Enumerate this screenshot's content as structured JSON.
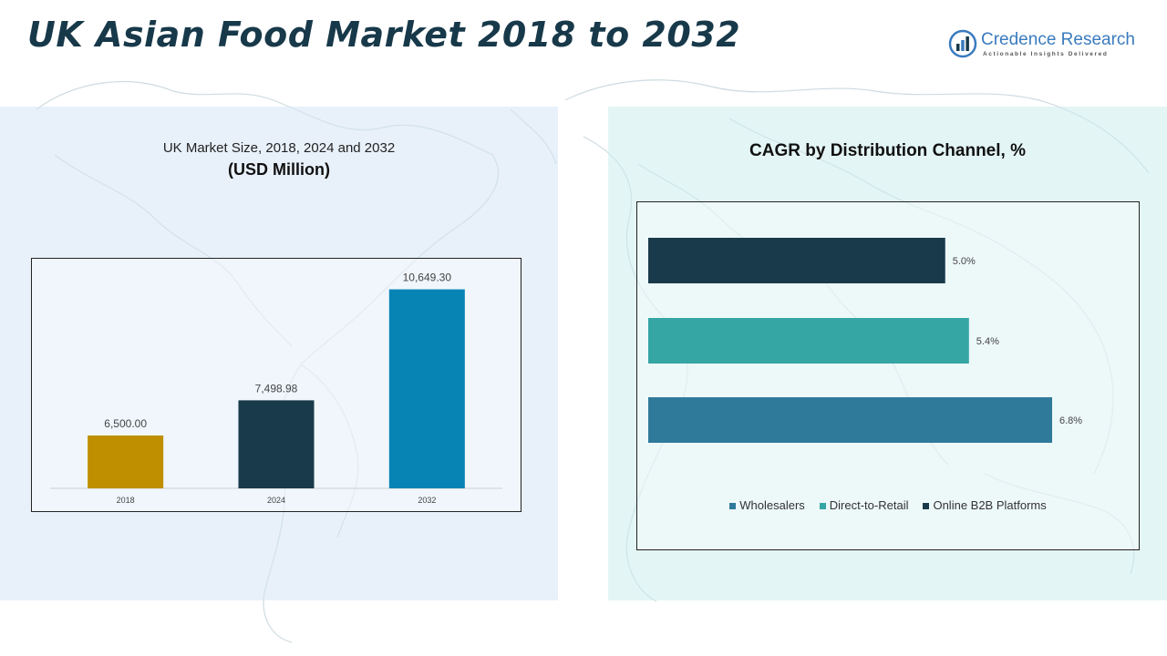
{
  "title": "UK Asian Food Market 2018 to 2032",
  "logo": {
    "name": "Credence Research",
    "tagline": "Actionable Insights Delivered",
    "icon": "credence-chart-icon"
  },
  "colors": {
    "title": "#17394a",
    "bar_2018": "#bf8f00",
    "bar_2024": "#193a4a",
    "bar_2032": "#0784b4",
    "online_b2b": "#193a4a",
    "direct_to_retail": "#35a6a4",
    "wholesalers": "#2f7a9a"
  },
  "chart_data": [
    {
      "type": "bar",
      "title": "UK Market Size, 2018, 2024 and 2032",
      "subtitle": "(USD Million)",
      "categories": [
        "2018",
        "2024",
        "2032"
      ],
      "values": [
        6500.0,
        7498.98,
        10649.3
      ],
      "value_labels": [
        "6,500.00",
        "7,498.98",
        "10,649.30"
      ],
      "ylim": [
        5000,
        11000
      ],
      "xlabel": "",
      "ylabel": "",
      "grid": false
    },
    {
      "type": "bar",
      "orientation": "horizontal",
      "title": "CAGR by Distribution Channel, %",
      "categories": [
        "Online B2B Platforms",
        "Direct-to-Retail",
        "Wholesalers"
      ],
      "values": [
        5.0,
        5.4,
        6.8
      ],
      "value_labels": [
        "5.0%",
        "5.4%",
        "6.8%"
      ],
      "xlim": [
        0,
        6.8
      ],
      "legend": [
        "Wholesalers",
        "Direct-to-Retail",
        "Online B2B Platforms"
      ],
      "legend_position": "bottom",
      "grid": false
    }
  ]
}
